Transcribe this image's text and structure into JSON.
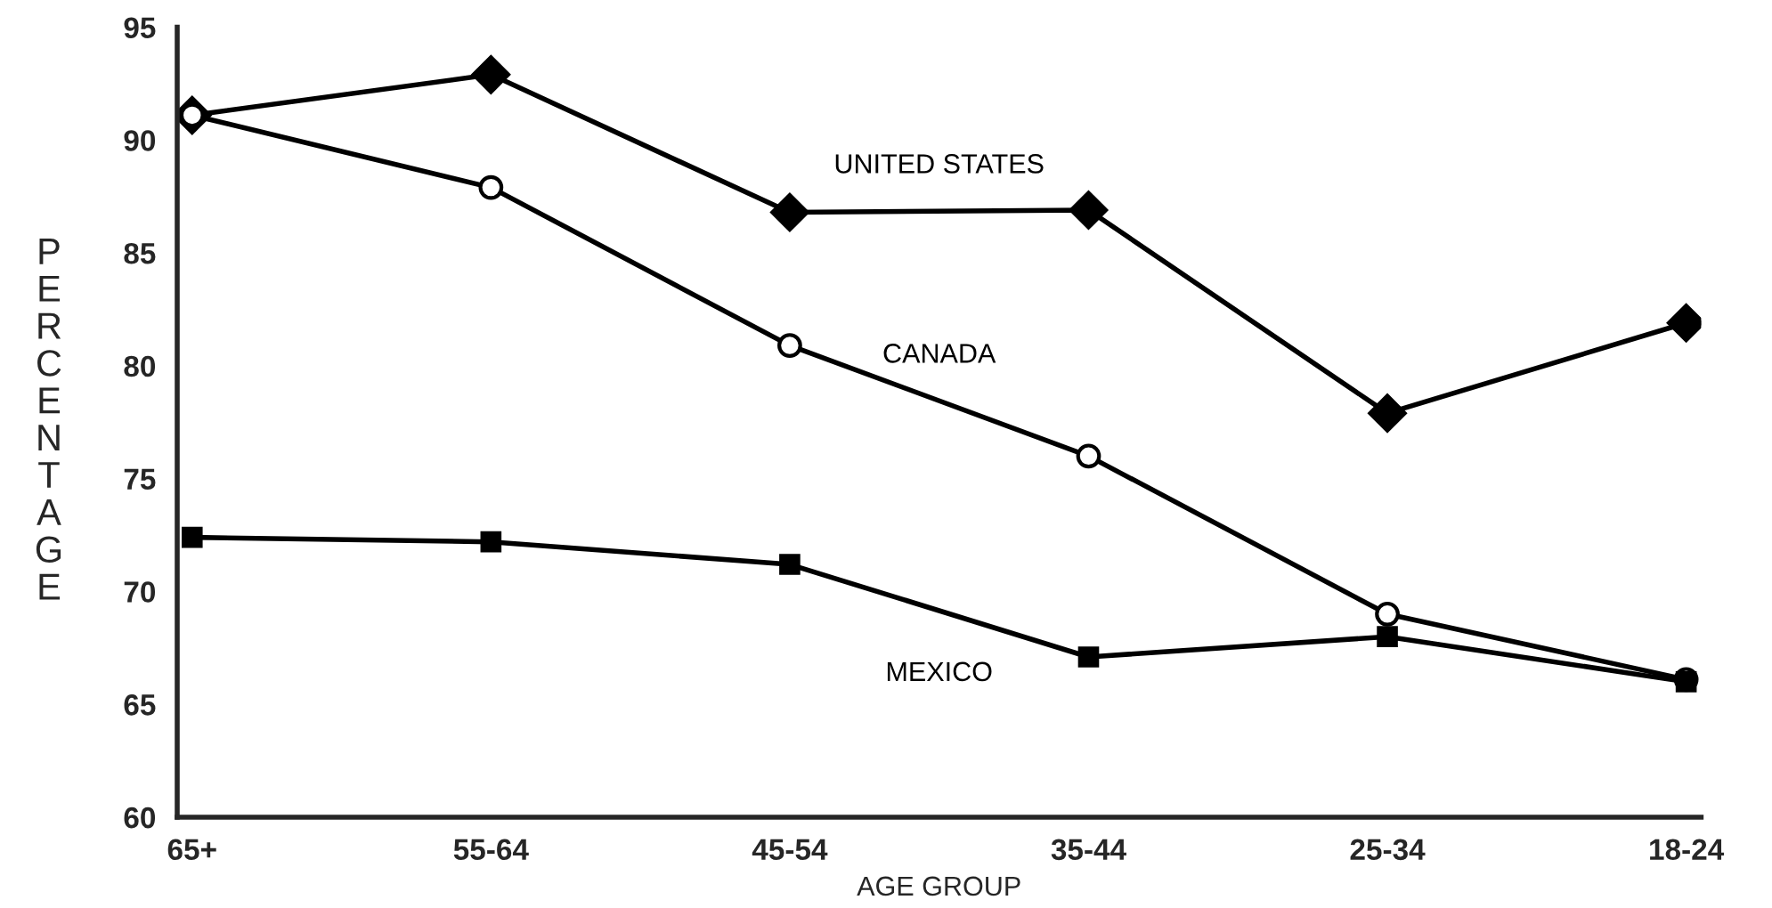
{
  "chart_data": {
    "type": "line",
    "xlabel": "AGE GROUP",
    "ylabel": "PERCENTAGE",
    "categories": [
      "65+",
      "55-64",
      "45-54",
      "35-44",
      "25-34",
      "18-24"
    ],
    "ylim": [
      60,
      95
    ],
    "yticks": [
      60,
      65,
      70,
      75,
      80,
      85,
      90,
      95
    ],
    "grid": false,
    "legend": false,
    "line_style": "solid",
    "series": [
      {
        "name": "UNITED STATES",
        "color": "#000000",
        "marker": "diamond",
        "values": [
          91.1,
          92.9,
          86.8,
          86.9,
          77.9,
          81.9
        ]
      },
      {
        "name": "CANADA",
        "color": "#000000",
        "marker": "circle",
        "values": [
          91.1,
          87.9,
          80.9,
          76.0,
          69.0,
          66.1
        ]
      },
      {
        "name": "MEXICO",
        "color": "#000000",
        "marker": "square",
        "values": [
          72.4,
          72.2,
          71.2,
          67.1,
          68.0,
          66.0
        ]
      }
    ]
  }
}
